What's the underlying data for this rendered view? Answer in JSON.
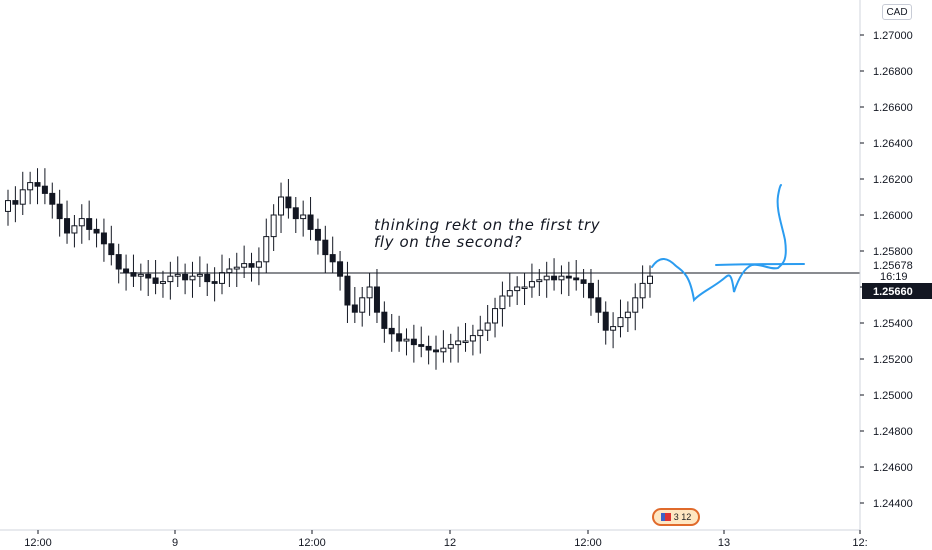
{
  "currency": "CAD",
  "badge": {
    "text": "3 12",
    "icon": "flag-icon"
  },
  "annotation": {
    "line1": "thinking rekt on the first try",
    "line2": "fly on the second?"
  },
  "price_labels": {
    "level": "1.25678",
    "countdown": "16:19",
    "last": "1.25660"
  },
  "chart_data": {
    "type": "candlestick",
    "title": "",
    "ylim": [
      1.2425,
      1.2715
    ],
    "y_ticks": [
      "1.27000",
      "1.26800",
      "1.26600",
      "1.26400",
      "1.26200",
      "1.26000",
      "1.25800",
      "1.25600",
      "1.25400",
      "1.25200",
      "1.25000",
      "1.24800",
      "1.24600",
      "1.24400"
    ],
    "y_tick_values": [
      1.27,
      1.268,
      1.266,
      1.264,
      1.262,
      1.26,
      1.258,
      1.256,
      1.254,
      1.252,
      1.25,
      1.248,
      1.246,
      1.244
    ],
    "x_ticks": [
      "12:00",
      "9",
      "12:00",
      "12",
      "12:00",
      "13",
      "12:"
    ],
    "horizontal_line": 1.25678,
    "last_price": 1.2566,
    "closes": [
      1.2608,
      1.2606,
      1.2614,
      1.2618,
      1.2616,
      1.2612,
      1.2606,
      1.2598,
      1.259,
      1.2594,
      1.2598,
      1.2592,
      1.259,
      1.2584,
      1.2578,
      1.257,
      1.2568,
      1.2566,
      1.2567,
      1.2565,
      1.2562,
      1.2563,
      1.2566,
      1.2567,
      1.2564,
      1.2566,
      1.2567,
      1.2563,
      1.2562,
      1.2568,
      1.257,
      1.2571,
      1.2573,
      1.2571,
      1.2574,
      1.2588,
      1.26,
      1.261,
      1.2604,
      1.2598,
      1.26,
      1.2592,
      1.2586,
      1.2578,
      1.2574,
      1.2566,
      1.255,
      1.2546,
      1.2554,
      1.256,
      1.2546,
      1.2537,
      1.2534,
      1.253,
      1.2531,
      1.2528,
      1.2527,
      1.2525,
      1.2524,
      1.2526,
      1.2528,
      1.253,
      1.253,
      1.2533,
      1.2536,
      1.254,
      1.2548,
      1.2555,
      1.2558,
      1.256,
      1.256,
      1.2563,
      1.2564,
      1.2566,
      1.2564,
      1.2566,
      1.2565,
      1.2564,
      1.2562,
      1.2554,
      1.2546,
      1.2536,
      1.2538,
      1.2543,
      1.2546,
      1.2554,
      1.2562,
      1.2566
    ]
  }
}
